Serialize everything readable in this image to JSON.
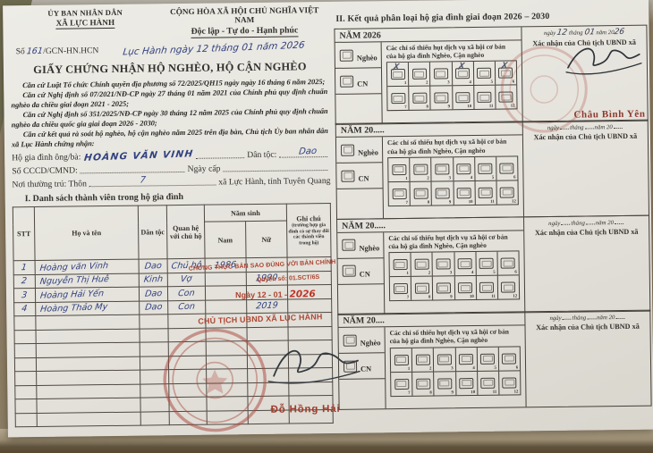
{
  "colors": {
    "stamp_red": "#ad4532",
    "ink_blue": "#31417f",
    "seal_red": "#a8453a",
    "print_ink": "#33302c"
  },
  "certificate": {
    "issuer_line1": "ỦY BAN NHÂN DÂN",
    "issuer_line2": "XÃ LỰC HÀNH",
    "motto_line1": "CỘNG HÒA XÃ HỘI CHỦ NGHĨA VIỆT NAM",
    "motto_line2": "Độc lập - Tự do - Hạnh phúc",
    "number_label": "Số",
    "number_value": "161",
    "number_suffix": "/GCN-HN.HCN",
    "place_date_handwritten": "Lục Hành ngày 12 tháng 01 năm 2026",
    "title": "GIẤY CHỨNG NHẬN HỘ NGHÈO, HỘ CẬN NGHÈO",
    "preamble": [
      "Căn cứ Luật Tổ chức Chính quyền địa phương số 72/2025/QH15 ngày ngày 16 tháng 6 năm 2025;",
      "Căn cứ Nghị định số 07/2021/NĐ-CP ngày 27 tháng 01 năm 2021 của Chính phủ quy định chuẩn nghèo đa chiều giai đoạn 2021 - 2025;",
      "Căn cứ Nghị định số 351/2025/NĐ-CP ngày 30 tháng 12 năm 2025 của Chính phủ quy định chuẩn nghèo đa chiều quốc gia giai đoạn 2026 - 2030;",
      "Căn cứ kết quả rà soát hộ nghèo, hộ cận nghèo năm 2025 trên địa bàn, Chủ tịch Ủy ban nhân dân xã Lục Hành chứng nhận:"
    ],
    "household_label": "Hộ gia đình ông/bà:",
    "household_name": "HOÀNG VĂN VINH",
    "ethnic_label": "Dân tộc:",
    "ethnic_value": "Dao",
    "id_label": "Số CCCD/CMND:",
    "issue_date_label": "Ngày cấp",
    "residence_label": "Nơi thường trú: Thôn",
    "residence_value": "7",
    "residence_suffix": "xã Lực Hành, tỉnh Tuyên Quang",
    "section1_title": "I. Danh sách thành viên trong hộ gia đình",
    "table": {
      "col_stt": "STT",
      "col_name": "Họ và tên",
      "col_ethnic": "Dân tộc",
      "col_relation": "Quan hệ với chủ hộ",
      "col_birth": "Năm sinh",
      "col_male": "Nam",
      "col_female": "Nữ",
      "col_note": "Ghi chú",
      "col_note_sub": "(trường hợp gia đình có sự thay đổi các thành viên trong hộ)",
      "rows": [
        {
          "stt": "1",
          "name": "Hoàng văn Vinh",
          "ethnic": "Dao",
          "relation": "Chủ hộ",
          "male": "1986",
          "female": "",
          "note": ""
        },
        {
          "stt": "2",
          "name": "Nguyễn Thị Huê",
          "ethnic": "Kinh",
          "relation": "Vợ",
          "male": "",
          "female": "1990",
          "note": ""
        },
        {
          "stt": "3",
          "name": "Hoàng Hải Yến",
          "ethnic": "Dao",
          "relation": "Con",
          "male": "",
          "female": "",
          "note": ""
        },
        {
          "stt": "4",
          "name": "Hoàng Thảo My",
          "ethnic": "Dao",
          "relation": "Con",
          "male": "",
          "female": "2019",
          "note": ""
        }
      ],
      "empty_rows": 8
    },
    "notary_stamp": {
      "line1": "CHỨNG THỰC BẢN SAO ĐÚNG VỚI BẢN CHÍNH",
      "line2": "Quyển số: 01.SCT/6S",
      "date_prefix": "Ngày 12 - 01 -",
      "date_year": "2026",
      "chairman": "CHỦ TỊCH UBND XÃ LỤC HÀNH",
      "signer": "Đỗ Hồng Hải"
    }
  },
  "classification": {
    "title": "II. Kết quả phân loại hộ gia đình giai đoạn 2026 – 2030",
    "labels": {
      "poor": "Nghèo",
      "near_poor": "CN",
      "indicators": "Các chỉ số thiếu hụt dịch vụ xã hội cơ bản của hộ gia đình Nghèo, Cận nghèo",
      "confirm": "Xác nhận của Chủ tịch UBND xã"
    },
    "date_words": {
      "day": "ngày",
      "month": "tháng",
      "year": "năm 20"
    },
    "blocks": [
      {
        "year_label": "NĂM 2026",
        "date_filled": true,
        "date_day": "12",
        "date_month": "01",
        "date_year": "26",
        "checked": [
          1,
          4,
          6
        ],
        "signer": "Châu Bình Yên"
      },
      {
        "year_label": "NĂM 20.....",
        "date_filled": false,
        "checked": []
      },
      {
        "year_label": "NĂM 20.....",
        "date_filled": false,
        "checked": []
      },
      {
        "year_label": "NĂM 20....",
        "date_filled": false,
        "checked": []
      }
    ]
  }
}
